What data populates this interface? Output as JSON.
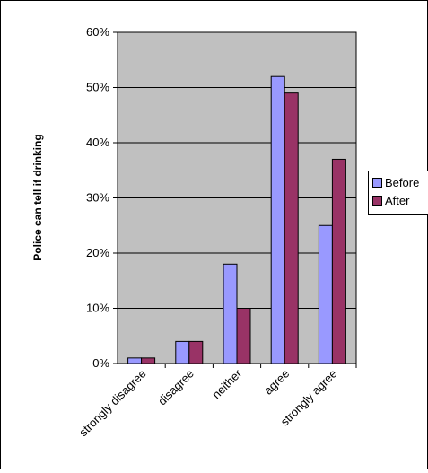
{
  "chart_data": {
    "type": "bar",
    "title": "",
    "xlabel": "",
    "ylabel": "Police can tell if drinking",
    "categories": [
      "strongly disagree",
      "disagree",
      "neither",
      "agree",
      "strongly agree"
    ],
    "series": [
      {
        "name": "Before",
        "values": [
          1,
          4,
          18,
          52,
          25
        ]
      },
      {
        "name": "After",
        "values": [
          1,
          4,
          10,
          49,
          37
        ]
      }
    ],
    "ylim": [
      0,
      60
    ],
    "yticks": [
      0,
      10,
      20,
      30,
      40,
      50,
      60
    ],
    "ytick_labels": [
      "0%",
      "10%",
      "20%",
      "30%",
      "40%",
      "50%",
      "60%"
    ],
    "grid": true,
    "legend_position": "right",
    "colors": {
      "plot_background": "#c0c0c0",
      "before": "#9999ff",
      "after": "#993366",
      "gridline": "#000000"
    }
  }
}
